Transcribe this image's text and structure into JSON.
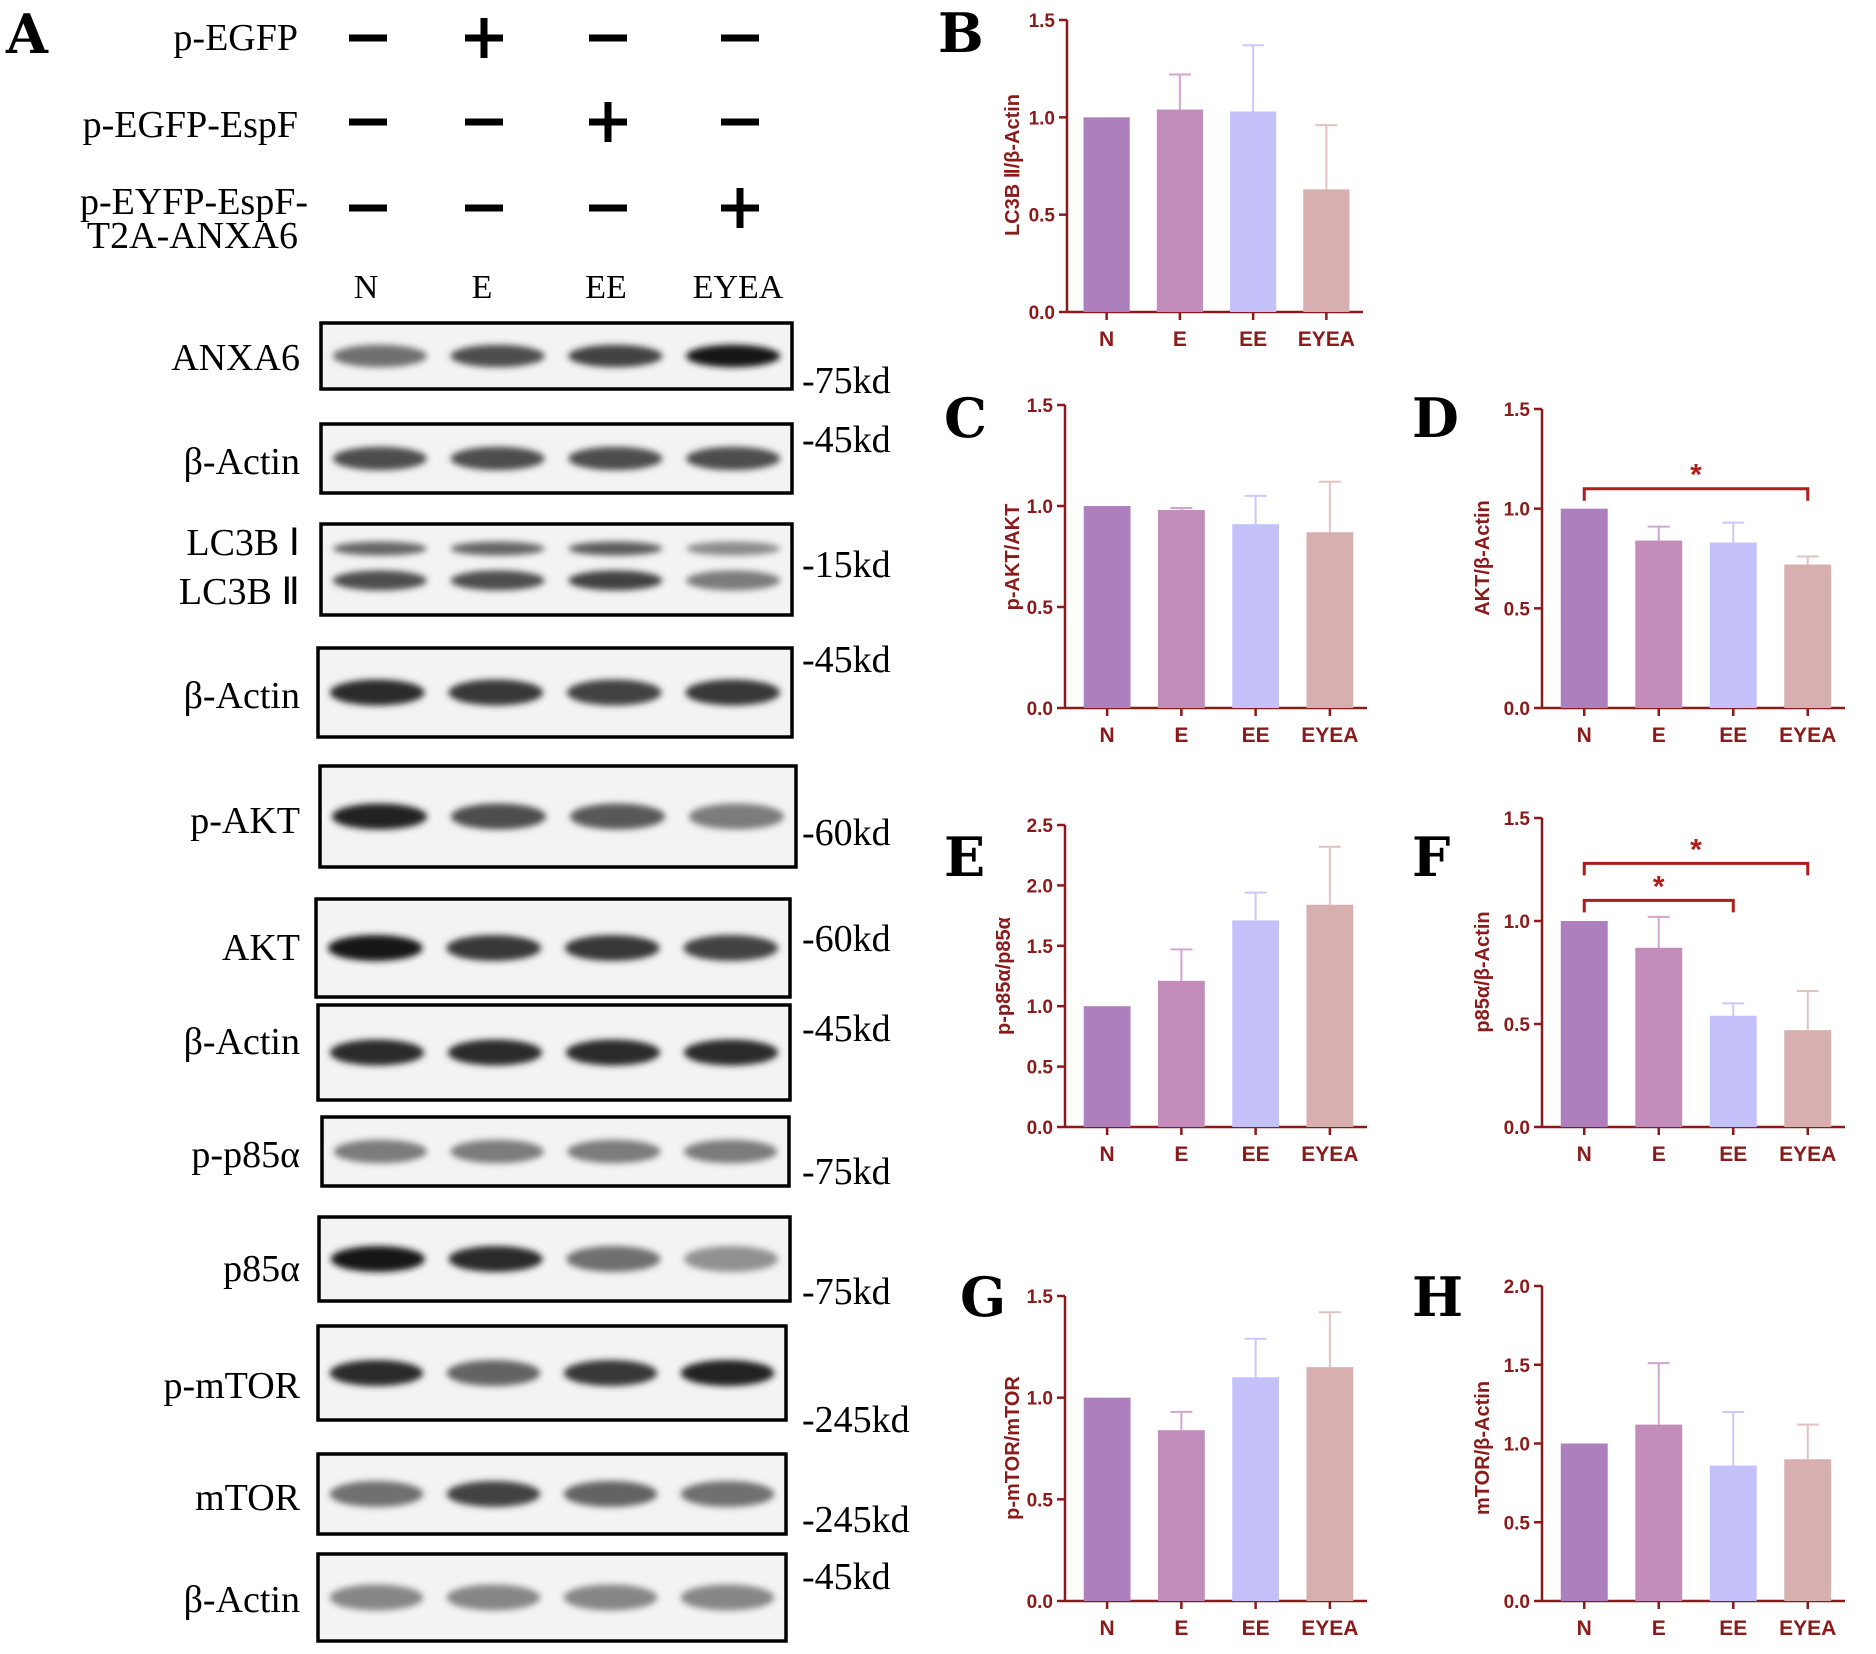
{
  "colors": {
    "axis": "#8b1a1a",
    "sig": "#b01c1c",
    "bars": [
      "#ad7fbd",
      "#c28cbb",
      "#c3c0fa",
      "#d7afae"
    ],
    "errors": [
      "#cdb3db",
      "#d0a6cf",
      "#cbc8fb",
      "#e3c2c2"
    ]
  },
  "panel_a": {
    "letter": "A",
    "conditions": [
      {
        "label": "p-EGFP",
        "signs": [
          "−",
          "+",
          "−",
          "−"
        ]
      },
      {
        "label": "p-EGFP-EspF",
        "signs": [
          "−",
          "−",
          "+",
          "−"
        ]
      },
      {
        "label_line1": "p-EYFP-EspF-",
        "label_line2": "T2A-ANXA6",
        "signs": [
          "−",
          "−",
          "−",
          "+"
        ]
      }
    ],
    "lanes": [
      "N",
      "E",
      "EE",
      "EYEA"
    ],
    "blots": [
      {
        "label": "ANXA6",
        "marker": "-75kd",
        "intensity": [
          0.55,
          0.7,
          0.75,
          0.95
        ]
      },
      {
        "label": "β-Actin",
        "marker": "-45kd",
        "intensity": [
          0.7,
          0.7,
          0.7,
          0.7
        ]
      },
      {
        "label": "LC3B Ⅰ",
        "label2": "LC3B Ⅱ",
        "marker": "-15kd",
        "intensity": [
          0.7,
          0.7,
          0.75,
          0.5
        ]
      },
      {
        "label": "β-Actin",
        "marker": "-45kd",
        "intensity": [
          0.85,
          0.8,
          0.75,
          0.8
        ]
      },
      {
        "label": "p-AKT",
        "marker": "-60kd",
        "intensity": [
          0.9,
          0.7,
          0.65,
          0.5
        ]
      },
      {
        "label": "AKT",
        "marker": "-60kd",
        "intensity": [
          0.95,
          0.8,
          0.8,
          0.75
        ]
      },
      {
        "label": "β-Actin",
        "marker": "-45kd",
        "intensity": [
          0.85,
          0.85,
          0.85,
          0.85
        ]
      },
      {
        "label": "p-p85α",
        "marker": "-75kd",
        "intensity": [
          0.5,
          0.5,
          0.5,
          0.5
        ]
      },
      {
        "label": "p85α",
        "marker": "-75kd",
        "intensity": [
          0.95,
          0.85,
          0.55,
          0.4
        ]
      },
      {
        "label": "p-mTOR",
        "marker": "-245kd",
        "intensity": [
          0.85,
          0.6,
          0.8,
          0.9
        ]
      },
      {
        "label": "mTOR",
        "marker": "-245kd",
        "intensity": [
          0.55,
          0.75,
          0.6,
          0.55
        ]
      },
      {
        "label": "β-Actin",
        "marker": "-45kd",
        "intensity": [
          0.45,
          0.45,
          0.45,
          0.45
        ]
      }
    ]
  },
  "chart_data": [
    {
      "panel": "B",
      "type": "bar",
      "categories": [
        "N",
        "E",
        "EE",
        "EYEA"
      ],
      "values": [
        1.0,
        1.04,
        1.03,
        0.63
      ],
      "errors": [
        0,
        0.18,
        0.34,
        0.33
      ],
      "ylabel": "LC3B Ⅱ/β-Actin",
      "ylim": [
        0,
        1.5
      ],
      "yticks": [
        "0.0",
        "0.5",
        "1.0",
        "1.5"
      ],
      "significance": []
    },
    {
      "panel": "C",
      "type": "bar",
      "categories": [
        "N",
        "E",
        "EE",
        "EYEA"
      ],
      "values": [
        1.0,
        0.98,
        0.91,
        0.87
      ],
      "errors": [
        0,
        0.01,
        0.14,
        0.25
      ],
      "ylabel": "p-AKT/AKT",
      "ylim": [
        0,
        1.5
      ],
      "yticks": [
        "0.0",
        "0.5",
        "1.0",
        "1.5"
      ],
      "significance": []
    },
    {
      "panel": "D",
      "type": "bar",
      "categories": [
        "N",
        "E",
        "EE",
        "EYEA"
      ],
      "values": [
        1.0,
        0.84,
        0.83,
        0.72
      ],
      "errors": [
        0,
        0.07,
        0.1,
        0.04
      ],
      "ylabel": "AKT/β-Actin",
      "ylim": [
        0,
        1.5
      ],
      "yticks": [
        "0.0",
        "0.5",
        "1.0",
        "1.5"
      ],
      "significance": [
        {
          "from": "N",
          "to": "EYEA",
          "label": "*",
          "y": 1.1
        }
      ]
    },
    {
      "panel": "E",
      "type": "bar",
      "categories": [
        "N",
        "E",
        "EE",
        "EYEA"
      ],
      "values": [
        1.0,
        1.21,
        1.71,
        1.84
      ],
      "errors": [
        0,
        0.26,
        0.23,
        0.48
      ],
      "ylabel": "p-p85α/p85α",
      "ylim": [
        0,
        2.5
      ],
      "yticks": [
        "0.0",
        "0.5",
        "1.0",
        "1.5",
        "2.0",
        "2.5"
      ],
      "significance": []
    },
    {
      "panel": "F",
      "type": "bar",
      "categories": [
        "N",
        "E",
        "EE",
        "EYEA"
      ],
      "values": [
        1.0,
        0.87,
        0.54,
        0.47
      ],
      "errors": [
        0,
        0.15,
        0.06,
        0.19
      ],
      "ylabel": "p85α/β-Actin",
      "ylim": [
        0,
        1.5
      ],
      "yticks": [
        "0.0",
        "0.5",
        "1.0",
        "1.5"
      ],
      "significance": [
        {
          "from": "N",
          "to": "EE",
          "label": "*",
          "y": 1.1
        },
        {
          "from": "N",
          "to": "EYEA",
          "label": "*",
          "y": 1.28
        }
      ]
    },
    {
      "panel": "G",
      "type": "bar",
      "categories": [
        "N",
        "E",
        "EE",
        "EYEA"
      ],
      "values": [
        1.0,
        0.84,
        1.1,
        1.15
      ],
      "errors": [
        0,
        0.09,
        0.19,
        0.27
      ],
      "ylabel": "p-mTOR/mTOR",
      "ylim": [
        0,
        1.5
      ],
      "yticks": [
        "0.0",
        "0.5",
        "1.0",
        "1.5"
      ],
      "significance": []
    },
    {
      "panel": "H",
      "type": "bar",
      "categories": [
        "N",
        "E",
        "EE",
        "EYEA"
      ],
      "values": [
        1.0,
        1.12,
        0.86,
        0.9
      ],
      "errors": [
        0,
        0.39,
        0.34,
        0.22
      ],
      "ylabel": "mTOR/β-Actin",
      "ylim": [
        0,
        2.0
      ],
      "yticks": [
        "0.0",
        "0.5",
        "1.0",
        "1.5",
        "2.0"
      ],
      "significance": []
    }
  ]
}
